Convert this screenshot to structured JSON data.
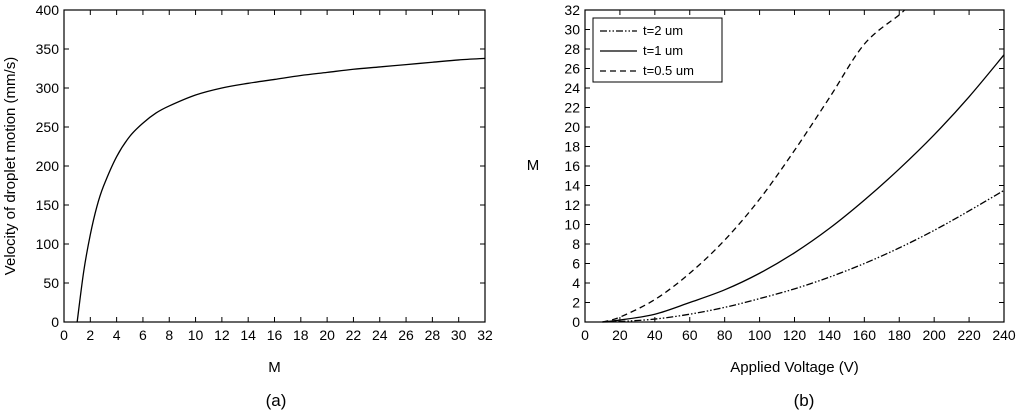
{
  "chart_data": [
    {
      "type": "line",
      "panel_label": "(a)",
      "xlabel": "M",
      "ylabel": "Velocity of droplet motion (mm/s)",
      "xlim": [
        0,
        32
      ],
      "ylim": [
        0,
        400
      ],
      "xticks": [
        0,
        2,
        4,
        6,
        8,
        10,
        12,
        14,
        16,
        18,
        20,
        22,
        24,
        26,
        28,
        30,
        32
      ],
      "yticks": [
        0,
        50,
        100,
        150,
        200,
        250,
        300,
        350,
        400
      ],
      "grid": false,
      "series": [
        {
          "style": "solid",
          "x": [
            1,
            1.5,
            2,
            2.5,
            3,
            4,
            5,
            6,
            7,
            8,
            10,
            12,
            14,
            16,
            18,
            20,
            22,
            24,
            26,
            28,
            30,
            32
          ],
          "y": [
            0,
            65,
            112,
            148,
            174,
            212,
            238,
            255,
            268,
            277,
            291,
            300,
            306,
            311,
            316,
            320,
            324,
            327,
            330,
            333,
            336,
            338
          ]
        }
      ]
    },
    {
      "type": "line",
      "panel_label": "(b)",
      "xlabel": "Applied Voltage (V)",
      "ylabel": "M",
      "xlim": [
        0,
        240
      ],
      "ylim": [
        0,
        32
      ],
      "xticks": [
        0,
        20,
        40,
        60,
        80,
        100,
        120,
        140,
        160,
        180,
        200,
        220,
        240
      ],
      "yticks": [
        0,
        2,
        4,
        6,
        8,
        10,
        12,
        14,
        16,
        18,
        20,
        22,
        24,
        26,
        28,
        30,
        32
      ],
      "grid": false,
      "legend_position": "top-left",
      "series": [
        {
          "name": "t=2 um",
          "style": "dash-dot-dot",
          "x": [
            10,
            20,
            40,
            60,
            80,
            100,
            120,
            140,
            160,
            180,
            200,
            220,
            240
          ],
          "y": [
            0,
            0.05,
            0.3,
            0.8,
            1.5,
            2.4,
            3.4,
            4.6,
            6.0,
            7.6,
            9.4,
            11.4,
            13.5
          ]
        },
        {
          "name": "t=1 um",
          "style": "solid",
          "x": [
            10,
            20,
            40,
            60,
            80,
            100,
            120,
            140,
            160,
            180,
            200,
            220,
            240
          ],
          "y": [
            0,
            0.2,
            0.8,
            2.0,
            3.3,
            5.0,
            7.1,
            9.6,
            12.5,
            15.7,
            19.2,
            23.1,
            27.4
          ]
        },
        {
          "name": "t=0.5 um",
          "style": "dashed",
          "x": [
            10,
            20,
            40,
            60,
            80,
            100,
            120,
            140,
            160,
            180,
            183
          ],
          "y": [
            0,
            0.5,
            2.3,
            5.0,
            8.4,
            12.6,
            17.6,
            23.0,
            28.5,
            31.5,
            32
          ]
        }
      ]
    }
  ]
}
